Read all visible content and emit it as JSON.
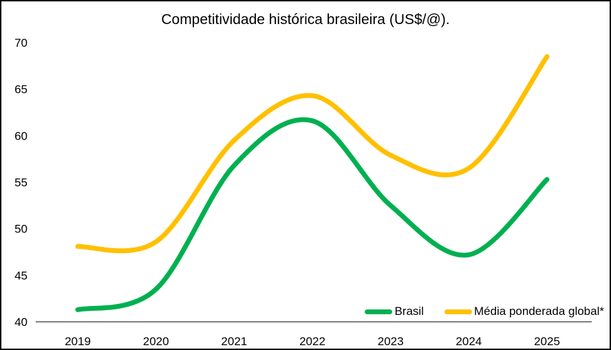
{
  "chart_data": {
    "type": "line",
    "title": "Competitividade histórica brasileira (US$/@).",
    "xlabel": "",
    "ylabel": "",
    "categories": [
      "2019",
      "2020",
      "2021",
      "2022",
      "2023",
      "2024",
      "2025"
    ],
    "series": [
      {
        "name": "Brasil",
        "color": "#00B050",
        "values": [
          41.3,
          43.5,
          56.8,
          61.6,
          52.5,
          47.2,
          55.3
        ]
      },
      {
        "name": "Média ponderada global*",
        "color": "#FFC000",
        "values": [
          48.1,
          48.6,
          59.5,
          64.3,
          57.9,
          56.5,
          68.5
        ]
      }
    ],
    "ylim": [
      40,
      70
    ],
    "yticks": [
      40,
      45,
      50,
      55,
      60,
      65,
      70
    ],
    "grid": false,
    "smooth": true,
    "legend_position": "bottom-right-inside",
    "axis_color": "#000000",
    "text_color": "#000000",
    "background_color": "#FFFFFF"
  }
}
